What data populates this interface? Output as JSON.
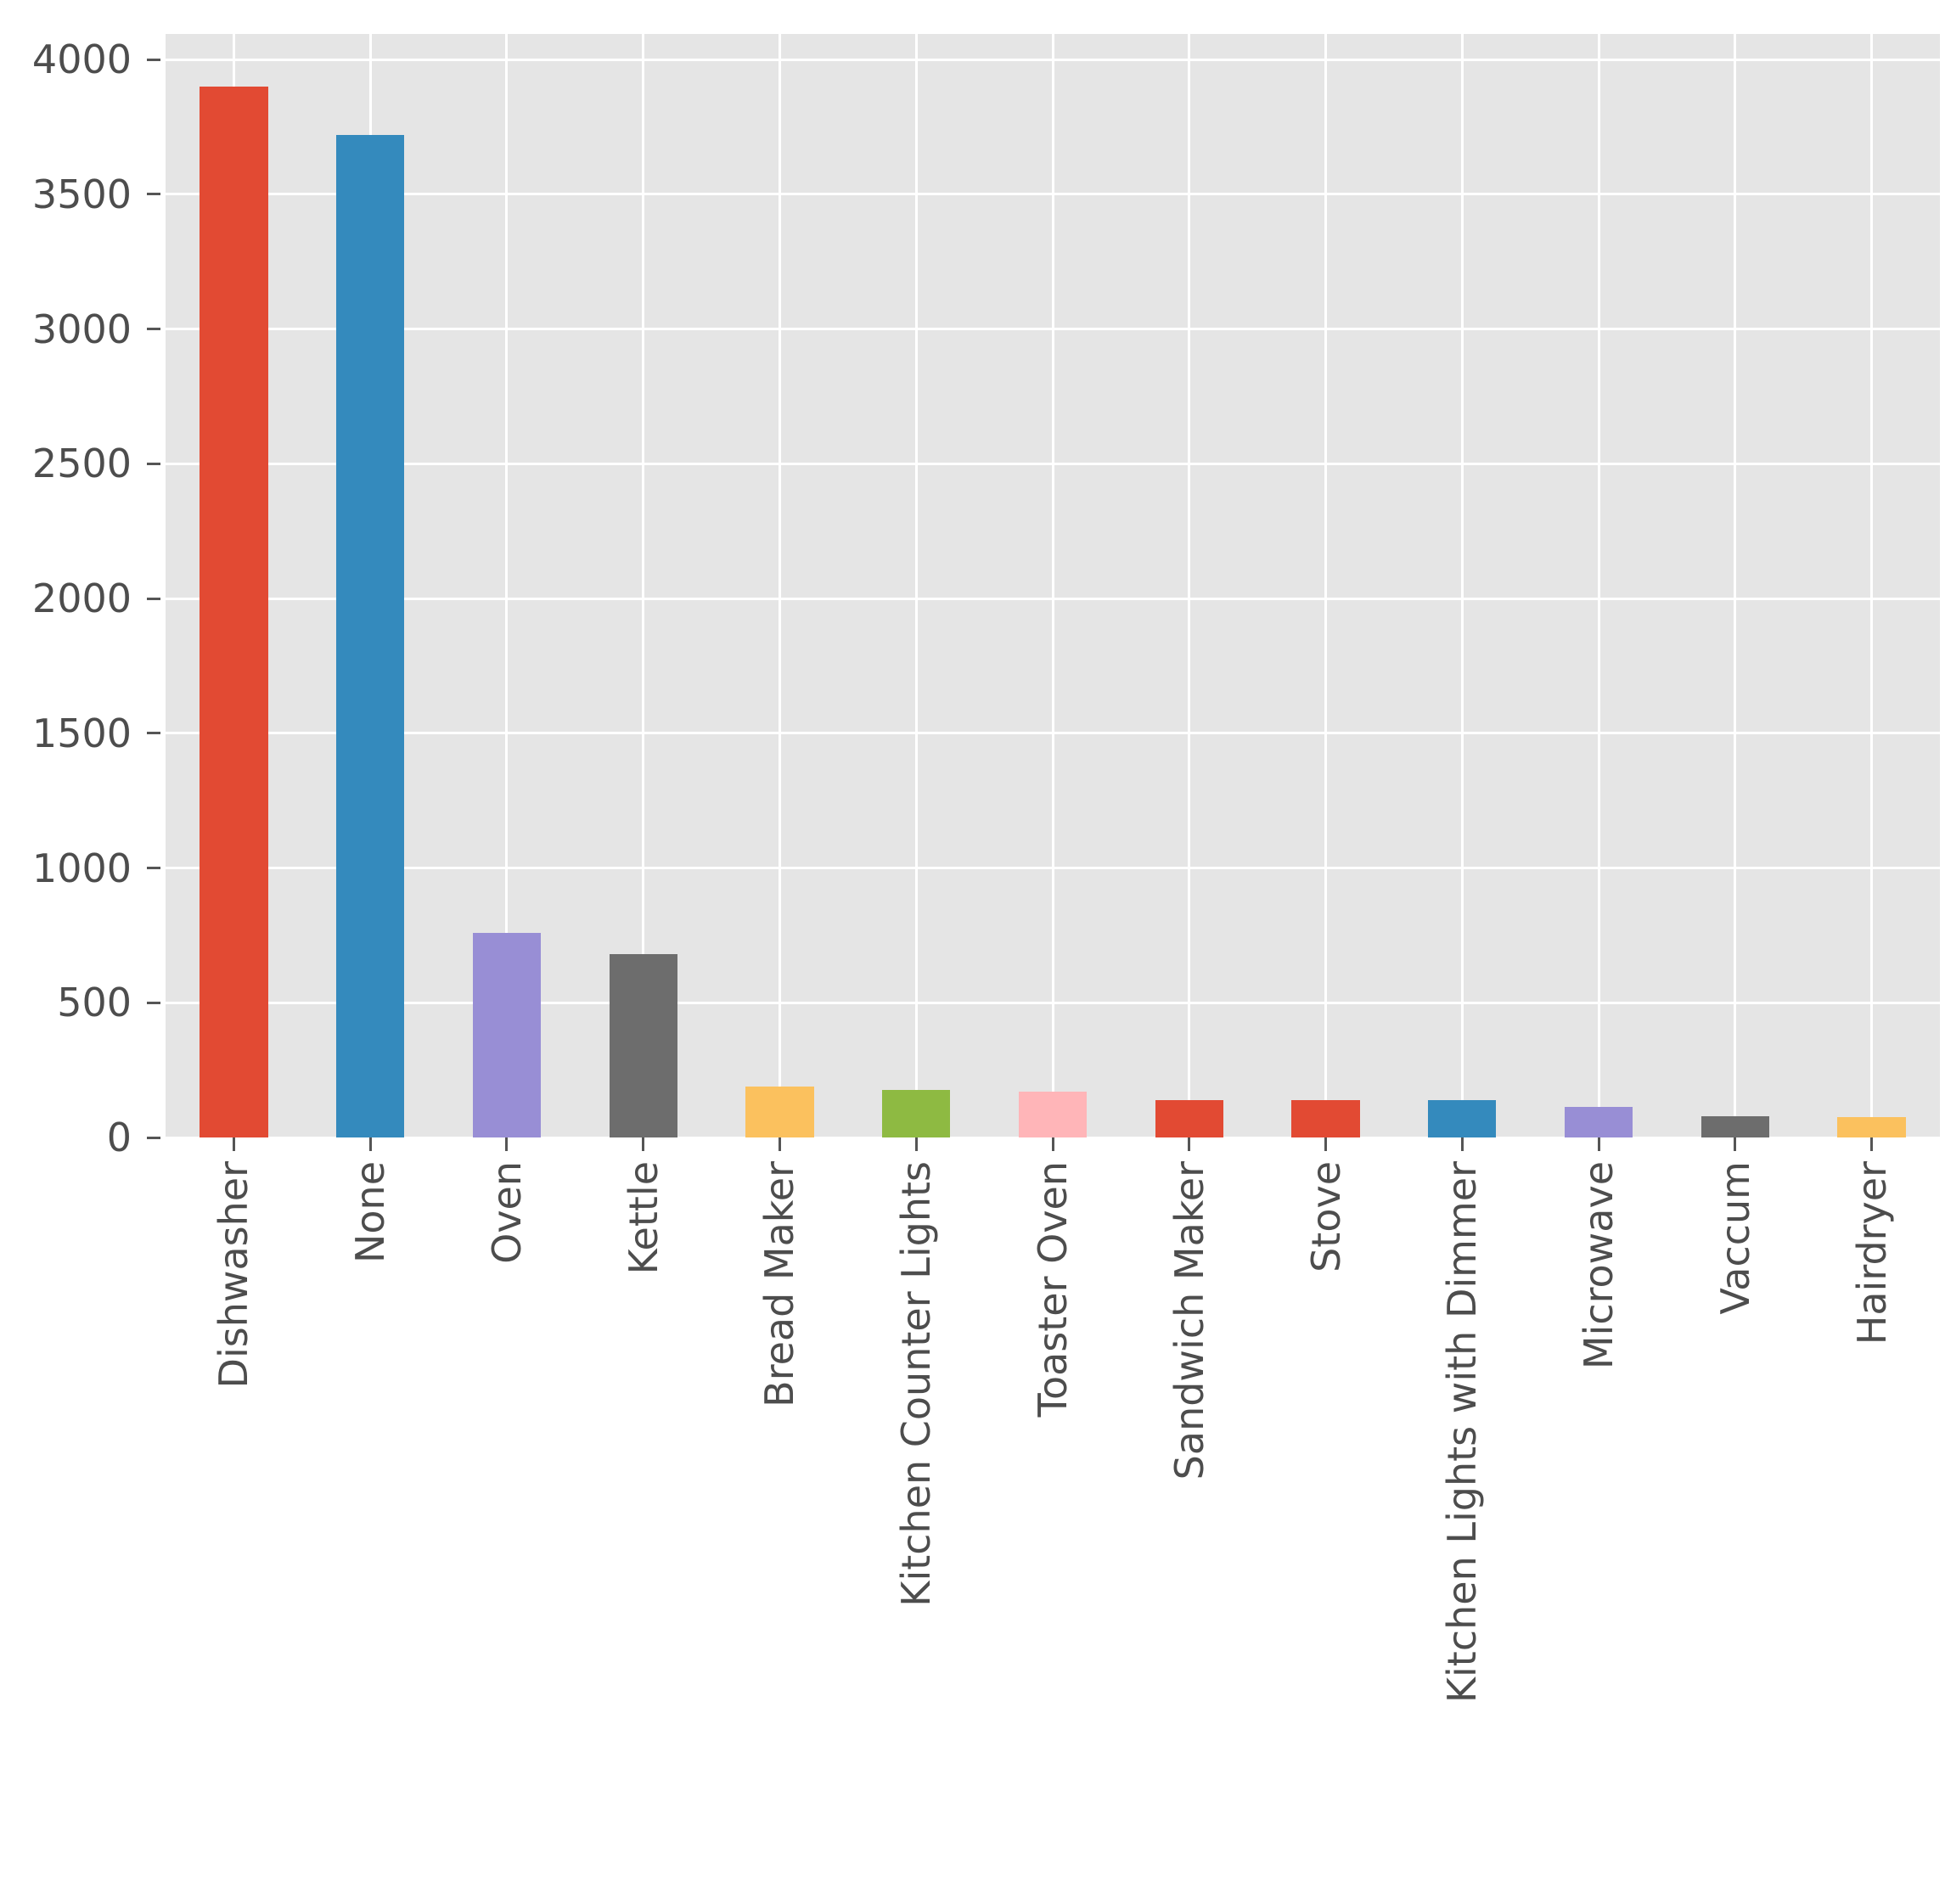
{
  "figure": {
    "background_color": "#ffffff",
    "plot_background_color": "#e5e5e5",
    "gridline_color": "#ffffff",
    "tick_mark_color": "#555555",
    "tick_label_color": "#4d4d4d"
  },
  "chart_data": {
    "type": "bar",
    "title": "",
    "xlabel": "",
    "ylabel": "",
    "categories": [
      "Dishwasher",
      "None",
      "Oven",
      "Kettle",
      "Bread Maker",
      "Kitchen Counter Lights",
      "Toaster Oven",
      "Sandwich Maker",
      "Stove",
      "Kitchen Lights with Dimmer",
      "Microwave",
      "Vaccum",
      "Hairdryer"
    ],
    "values": [
      3900,
      3720,
      760,
      680,
      190,
      175,
      170,
      140,
      140,
      140,
      115,
      80,
      75
    ],
    "bar_colors": [
      "#e24a33",
      "#348abd",
      "#988ed5",
      "#6d6d6d",
      "#fbc15e",
      "#8eba42",
      "#ffb5b8",
      "#e24a33",
      "#e24a33",
      "#348abd",
      "#988ed5",
      "#6d6d6d",
      "#fbc15e"
    ],
    "yticks": [
      0,
      500,
      1000,
      1500,
      2000,
      2500,
      3000,
      3500,
      4000
    ],
    "ylim": [
      0,
      4095
    ],
    "grid": true,
    "legend": false,
    "x_tick_rotation": 90,
    "bar_width_fraction": 0.5
  }
}
